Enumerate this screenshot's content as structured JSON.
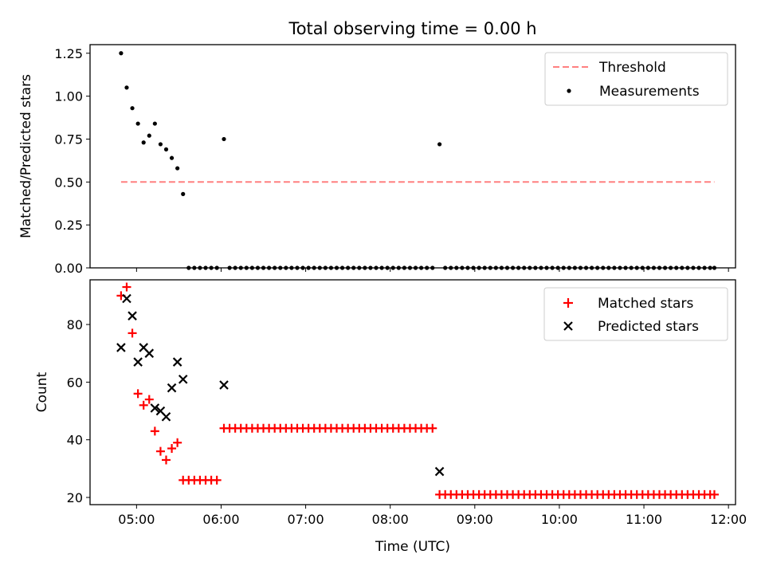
{
  "chart_data": [
    {
      "type": "scatter",
      "title": "Total observing time = 0.00 h",
      "xlabel": "",
      "ylabel": "Matched/Predicted stars",
      "xlim": [
        "04:27",
        "12:05"
      ],
      "ylim": [
        0,
        1.3
      ],
      "yticks": [
        "0.00",
        "0.25",
        "0.50",
        "0.75",
        "1.00",
        "1.25"
      ],
      "legend_position": "top-right",
      "threshold": {
        "name": "Threshold",
        "value": 0.5,
        "x_start": "04:49",
        "x_end": "11:50",
        "color": "#ff8080",
        "style": "dashed"
      },
      "series": [
        {
          "name": "Measurements",
          "color": "#000000",
          "marker": "dot",
          "points": [
            [
              "04:49",
              1.25
            ],
            [
              "04:53",
              1.05
            ],
            [
              "04:57",
              0.93
            ],
            [
              "05:01",
              0.84
            ],
            [
              "05:05",
              0.73
            ],
            [
              "05:09",
              0.77
            ],
            [
              "05:13",
              0.84
            ],
            [
              "05:17",
              0.72
            ],
            [
              "05:21",
              0.69
            ],
            [
              "05:25",
              0.64
            ],
            [
              "05:29",
              0.58
            ],
            [
              "05:33",
              0.43
            ],
            [
              "05:37",
              0.0
            ],
            [
              "05:41",
              0.0
            ],
            [
              "05:45",
              0.0
            ],
            [
              "05:49",
              0.0
            ],
            [
              "05:53",
              0.0
            ],
            [
              "05:57",
              0.0
            ],
            [
              "06:02",
              0.75
            ],
            [
              "06:06",
              0.0
            ],
            [
              "06:10",
              0.0
            ],
            [
              "06:14",
              0.0
            ],
            [
              "06:18",
              0.0
            ],
            [
              "06:22",
              0.0
            ],
            [
              "06:26",
              0.0
            ],
            [
              "06:30",
              0.0
            ],
            [
              "06:34",
              0.0
            ],
            [
              "06:38",
              0.0
            ],
            [
              "06:42",
              0.0
            ],
            [
              "06:46",
              0.0
            ],
            [
              "06:50",
              0.0
            ],
            [
              "06:54",
              0.0
            ],
            [
              "06:58",
              0.0
            ],
            [
              "07:02",
              0.0
            ],
            [
              "07:06",
              0.0
            ],
            [
              "07:10",
              0.0
            ],
            [
              "07:14",
              0.0
            ],
            [
              "07:18",
              0.0
            ],
            [
              "07:22",
              0.0
            ],
            [
              "07:26",
              0.0
            ],
            [
              "07:30",
              0.0
            ],
            [
              "07:34",
              0.0
            ],
            [
              "07:38",
              0.0
            ],
            [
              "07:42",
              0.0
            ],
            [
              "07:46",
              0.0
            ],
            [
              "07:50",
              0.0
            ],
            [
              "07:54",
              0.0
            ],
            [
              "07:58",
              0.0
            ],
            [
              "08:02",
              0.0
            ],
            [
              "08:06",
              0.0
            ],
            [
              "08:10",
              0.0
            ],
            [
              "08:14",
              0.0
            ],
            [
              "08:18",
              0.0
            ],
            [
              "08:22",
              0.0
            ],
            [
              "08:26",
              0.0
            ],
            [
              "08:30",
              0.0
            ],
            [
              "08:35",
              0.72
            ],
            [
              "08:39",
              0.0
            ],
            [
              "08:43",
              0.0
            ],
            [
              "08:47",
              0.0
            ],
            [
              "08:51",
              0.0
            ],
            [
              "08:55",
              0.0
            ],
            [
              "08:59",
              0.0
            ],
            [
              "09:03",
              0.0
            ],
            [
              "09:07",
              0.0
            ],
            [
              "09:11",
              0.0
            ],
            [
              "09:15",
              0.0
            ],
            [
              "09:19",
              0.0
            ],
            [
              "09:23",
              0.0
            ],
            [
              "09:27",
              0.0
            ],
            [
              "09:31",
              0.0
            ],
            [
              "09:35",
              0.0
            ],
            [
              "09:39",
              0.0
            ],
            [
              "09:43",
              0.0
            ],
            [
              "09:47",
              0.0
            ],
            [
              "09:51",
              0.0
            ],
            [
              "09:55",
              0.0
            ],
            [
              "09:59",
              0.0
            ],
            [
              "10:03",
              0.0
            ],
            [
              "10:07",
              0.0
            ],
            [
              "10:11",
              0.0
            ],
            [
              "10:15",
              0.0
            ],
            [
              "10:19",
              0.0
            ],
            [
              "10:23",
              0.0
            ],
            [
              "10:27",
              0.0
            ],
            [
              "10:31",
              0.0
            ],
            [
              "10:35",
              0.0
            ],
            [
              "10:39",
              0.0
            ],
            [
              "10:43",
              0.0
            ],
            [
              "10:47",
              0.0
            ],
            [
              "10:51",
              0.0
            ],
            [
              "10:55",
              0.0
            ],
            [
              "10:59",
              0.0
            ],
            [
              "11:03",
              0.0
            ],
            [
              "11:07",
              0.0
            ],
            [
              "11:11",
              0.0
            ],
            [
              "11:15",
              0.0
            ],
            [
              "11:19",
              0.0
            ],
            [
              "11:23",
              0.0
            ],
            [
              "11:27",
              0.0
            ],
            [
              "11:31",
              0.0
            ],
            [
              "11:35",
              0.0
            ],
            [
              "11:39",
              0.0
            ],
            [
              "11:43",
              0.0
            ],
            [
              "11:47",
              0.0
            ],
            [
              "11:50",
              0.0
            ]
          ]
        }
      ]
    },
    {
      "type": "scatter",
      "title": "",
      "xlabel": "Time (UTC)",
      "ylabel": "Count",
      "xlim": [
        "04:27",
        "12:05"
      ],
      "ylim": [
        17.5,
        95.5
      ],
      "xticks": [
        "05:00",
        "06:00",
        "07:00",
        "08:00",
        "09:00",
        "10:00",
        "11:00",
        "12:00"
      ],
      "yticks": [
        "20",
        "40",
        "60",
        "80"
      ],
      "legend_position": "top-right",
      "series": [
        {
          "name": "Matched stars",
          "color": "#ff0000",
          "marker": "plus",
          "points": [
            [
              "04:49",
              90
            ],
            [
              "04:53",
              93
            ],
            [
              "04:57",
              77
            ],
            [
              "05:01",
              56
            ],
            [
              "05:05",
              52
            ],
            [
              "05:09",
              54
            ],
            [
              "05:13",
              43
            ],
            [
              "05:17",
              36
            ],
            [
              "05:21",
              33
            ],
            [
              "05:25",
              37
            ],
            [
              "05:29",
              39
            ],
            [
              "05:33",
              26
            ],
            [
              "05:37",
              26
            ],
            [
              "05:41",
              26
            ],
            [
              "05:45",
              26
            ],
            [
              "05:49",
              26
            ],
            [
              "05:53",
              26
            ],
            [
              "05:57",
              26
            ],
            [
              "06:02",
              44
            ],
            [
              "06:06",
              44
            ],
            [
              "06:10",
              44
            ],
            [
              "06:14",
              44
            ],
            [
              "06:18",
              44
            ],
            [
              "06:22",
              44
            ],
            [
              "06:26",
              44
            ],
            [
              "06:30",
              44
            ],
            [
              "06:34",
              44
            ],
            [
              "06:38",
              44
            ],
            [
              "06:42",
              44
            ],
            [
              "06:46",
              44
            ],
            [
              "06:50",
              44
            ],
            [
              "06:54",
              44
            ],
            [
              "06:58",
              44
            ],
            [
              "07:02",
              44
            ],
            [
              "07:06",
              44
            ],
            [
              "07:10",
              44
            ],
            [
              "07:14",
              44
            ],
            [
              "07:18",
              44
            ],
            [
              "07:22",
              44
            ],
            [
              "07:26",
              44
            ],
            [
              "07:30",
              44
            ],
            [
              "07:34",
              44
            ],
            [
              "07:38",
              44
            ],
            [
              "07:42",
              44
            ],
            [
              "07:46",
              44
            ],
            [
              "07:50",
              44
            ],
            [
              "07:54",
              44
            ],
            [
              "07:58",
              44
            ],
            [
              "08:02",
              44
            ],
            [
              "08:06",
              44
            ],
            [
              "08:10",
              44
            ],
            [
              "08:14",
              44
            ],
            [
              "08:18",
              44
            ],
            [
              "08:22",
              44
            ],
            [
              "08:26",
              44
            ],
            [
              "08:30",
              44
            ],
            [
              "08:35",
              21
            ],
            [
              "08:39",
              21
            ],
            [
              "08:43",
              21
            ],
            [
              "08:47",
              21
            ],
            [
              "08:51",
              21
            ],
            [
              "08:55",
              21
            ],
            [
              "08:59",
              21
            ],
            [
              "09:03",
              21
            ],
            [
              "09:07",
              21
            ],
            [
              "09:11",
              21
            ],
            [
              "09:15",
              21
            ],
            [
              "09:19",
              21
            ],
            [
              "09:23",
              21
            ],
            [
              "09:27",
              21
            ],
            [
              "09:31",
              21
            ],
            [
              "09:35",
              21
            ],
            [
              "09:39",
              21
            ],
            [
              "09:43",
              21
            ],
            [
              "09:47",
              21
            ],
            [
              "09:51",
              21
            ],
            [
              "09:55",
              21
            ],
            [
              "09:59",
              21
            ],
            [
              "10:03",
              21
            ],
            [
              "10:07",
              21
            ],
            [
              "10:11",
              21
            ],
            [
              "10:15",
              21
            ],
            [
              "10:19",
              21
            ],
            [
              "10:23",
              21
            ],
            [
              "10:27",
              21
            ],
            [
              "10:31",
              21
            ],
            [
              "10:35",
              21
            ],
            [
              "10:39",
              21
            ],
            [
              "10:43",
              21
            ],
            [
              "10:47",
              21
            ],
            [
              "10:51",
              21
            ],
            [
              "10:55",
              21
            ],
            [
              "10:59",
              21
            ],
            [
              "11:03",
              21
            ],
            [
              "11:07",
              21
            ],
            [
              "11:11",
              21
            ],
            [
              "11:15",
              21
            ],
            [
              "11:19",
              21
            ],
            [
              "11:23",
              21
            ],
            [
              "11:27",
              21
            ],
            [
              "11:31",
              21
            ],
            [
              "11:35",
              21
            ],
            [
              "11:39",
              21
            ],
            [
              "11:43",
              21
            ],
            [
              "11:47",
              21
            ],
            [
              "11:50",
              21
            ]
          ]
        },
        {
          "name": "Predicted stars",
          "color": "#000000",
          "marker": "x",
          "points": [
            [
              "04:49",
              72
            ],
            [
              "04:53",
              89
            ],
            [
              "04:57",
              83
            ],
            [
              "05:01",
              67
            ],
            [
              "05:05",
              72
            ],
            [
              "05:09",
              70
            ],
            [
              "05:13",
              51
            ],
            [
              "05:17",
              50
            ],
            [
              "05:21",
              48
            ],
            [
              "05:25",
              58
            ],
            [
              "05:29",
              67
            ],
            [
              "05:33",
              61
            ],
            [
              "06:02",
              59
            ],
            [
              "08:35",
              29
            ]
          ]
        }
      ]
    }
  ]
}
